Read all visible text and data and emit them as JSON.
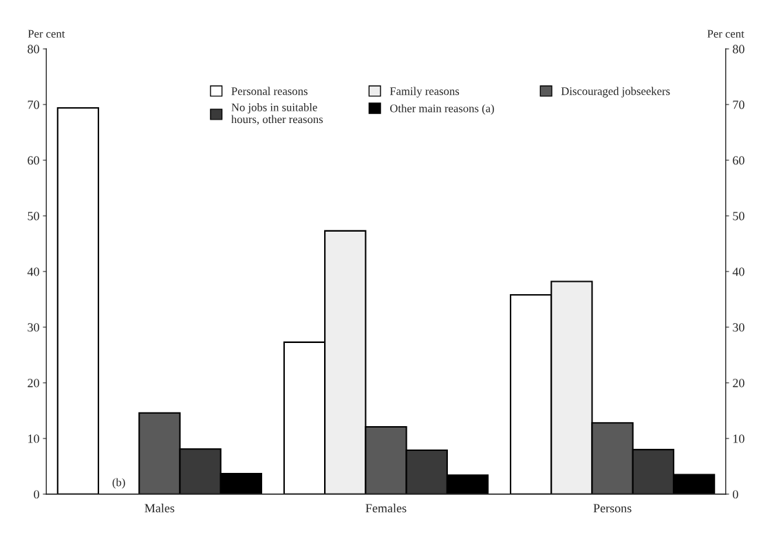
{
  "chart_data": {
    "type": "bar",
    "ylabel": "Per cent",
    "y2label": "Per cent",
    "categories": [
      "Males",
      "Females",
      "Persons"
    ],
    "series": [
      {
        "name": "Personal reasons",
        "color": "#ffffff",
        "values": [
          69.4,
          27.3,
          35.8
        ]
      },
      {
        "name": "Family reasons",
        "color": "#eeeeee",
        "values": [
          null,
          47.3,
          38.2
        ]
      },
      {
        "name": "Discouraged jobseekers",
        "color": "#5a5a5a",
        "values": [
          14.6,
          12.1,
          12.8
        ]
      },
      {
        "name": "No jobs in suitable\nhours, other reasons",
        "color": "#3a3a3a",
        "values": [
          8.1,
          7.9,
          8.0
        ]
      },
      {
        "name": "Other main reasons (a)",
        "color": "#000000",
        "values": [
          3.7,
          3.4,
          3.5
        ]
      }
    ],
    "annotations": [
      "(b)"
    ],
    "ylim": [
      0,
      80
    ],
    "yticks": [
      0,
      10,
      20,
      30,
      40,
      50,
      60,
      70,
      80
    ],
    "y2lim": [
      0,
      80
    ],
    "y2ticks": [
      0,
      10,
      20,
      30,
      40,
      50,
      60,
      70,
      80
    ],
    "grid": false,
    "legend": "top"
  }
}
